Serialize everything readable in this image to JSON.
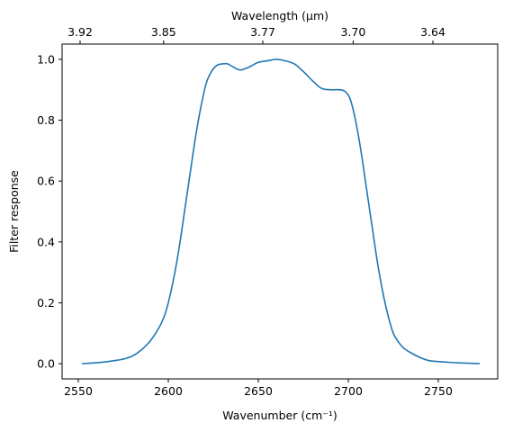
{
  "chart_data": {
    "type": "line",
    "xlabel": "Wavenumber (cm⁻¹)",
    "ylabel": "Filter response",
    "top_xlabel": "Wavelength (μm)",
    "xlim": [
      2541,
      2783
    ],
    "ylim": [
      -0.05,
      1.05
    ],
    "x_ticks": [
      2550,
      2600,
      2650,
      2700,
      2750
    ],
    "x_tick_labels": [
      "2550",
      "2600",
      "2650",
      "2700",
      "2750"
    ],
    "y_ticks": [
      0.0,
      0.2,
      0.4,
      0.6,
      0.8,
      1.0
    ],
    "y_tick_labels": [
      "0.0",
      "0.2",
      "0.4",
      "0.6",
      "0.8",
      "1.0"
    ],
    "top_ticks": [
      2551,
      2597.4,
      2652.5,
      2702.7,
      2747
    ],
    "top_tick_labels": [
      "3.92",
      "3.85",
      "3.77",
      "3.70",
      "3.64"
    ],
    "grid": false,
    "legend": "none",
    "series": [
      {
        "color": "#1f77b4",
        "x": [
          2552,
          2560,
          2565,
          2570,
          2575,
          2580,
          2585,
          2590,
          2595,
          2598,
          2600,
          2603,
          2606,
          2609,
          2612,
          2615,
          2618,
          2621,
          2624,
          2627,
          2630,
          2633,
          2636,
          2640,
          2645,
          2650,
          2655,
          2660,
          2665,
          2670,
          2675,
          2680,
          2685,
          2690,
          2695,
          2698,
          2701,
          2704,
          2707,
          2710,
          2713,
          2716,
          2719,
          2722,
          2725,
          2728,
          2731,
          2735,
          2740,
          2745,
          2750,
          2755,
          2760,
          2765,
          2773
        ],
        "y": [
          0.0,
          0.003,
          0.006,
          0.01,
          0.015,
          0.025,
          0.045,
          0.075,
          0.12,
          0.16,
          0.2,
          0.28,
          0.38,
          0.5,
          0.62,
          0.74,
          0.84,
          0.92,
          0.96,
          0.98,
          0.985,
          0.985,
          0.975,
          0.965,
          0.975,
          0.99,
          0.995,
          1.0,
          0.995,
          0.985,
          0.96,
          0.93,
          0.905,
          0.9,
          0.9,
          0.895,
          0.87,
          0.8,
          0.7,
          0.58,
          0.46,
          0.34,
          0.24,
          0.16,
          0.1,
          0.07,
          0.05,
          0.035,
          0.02,
          0.01,
          0.007,
          0.005,
          0.003,
          0.002,
          0.0
        ]
      }
    ]
  }
}
